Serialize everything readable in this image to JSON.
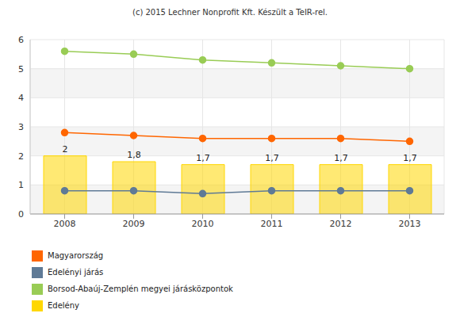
{
  "chart_data": {
    "type": "line",
    "title": "(c) 2015 Lechner Nonprofit Kft. Készült a TeIR-rel.",
    "categories": [
      "2008",
      "2009",
      "2010",
      "2011",
      "2012",
      "2013"
    ],
    "ylim": [
      0,
      6
    ],
    "yticks": [
      0,
      1,
      2,
      3,
      4,
      5,
      6
    ],
    "grid": true,
    "legend": "bottom left",
    "series": [
      {
        "name": "Magyarország",
        "type": "line",
        "color": "#ff6600",
        "marker": "circle",
        "values": [
          2.8,
          2.7,
          2.6,
          2.6,
          2.6,
          2.5
        ]
      },
      {
        "name": "Edelényi járás",
        "type": "line",
        "color": "#5f7a96",
        "marker": "circle",
        "values": [
          0.8,
          0.8,
          0.7,
          0.8,
          0.8,
          0.8
        ]
      },
      {
        "name": "Borsod-Abaúj-Zemplén megyei járásközpontok",
        "type": "line",
        "color": "#99cc55",
        "marker": "circle",
        "values": [
          5.6,
          5.5,
          5.3,
          5.2,
          5.1,
          5.0
        ]
      },
      {
        "name": "Edelény",
        "type": "bar",
        "color": "#ffd700",
        "data_labels": true,
        "values": [
          2,
          1.8,
          1.7,
          1.7,
          1.7,
          1.7
        ],
        "value_labels": [
          "2",
          "1,8",
          "1,7",
          "1,7",
          "1,7",
          "1,7"
        ]
      }
    ]
  }
}
